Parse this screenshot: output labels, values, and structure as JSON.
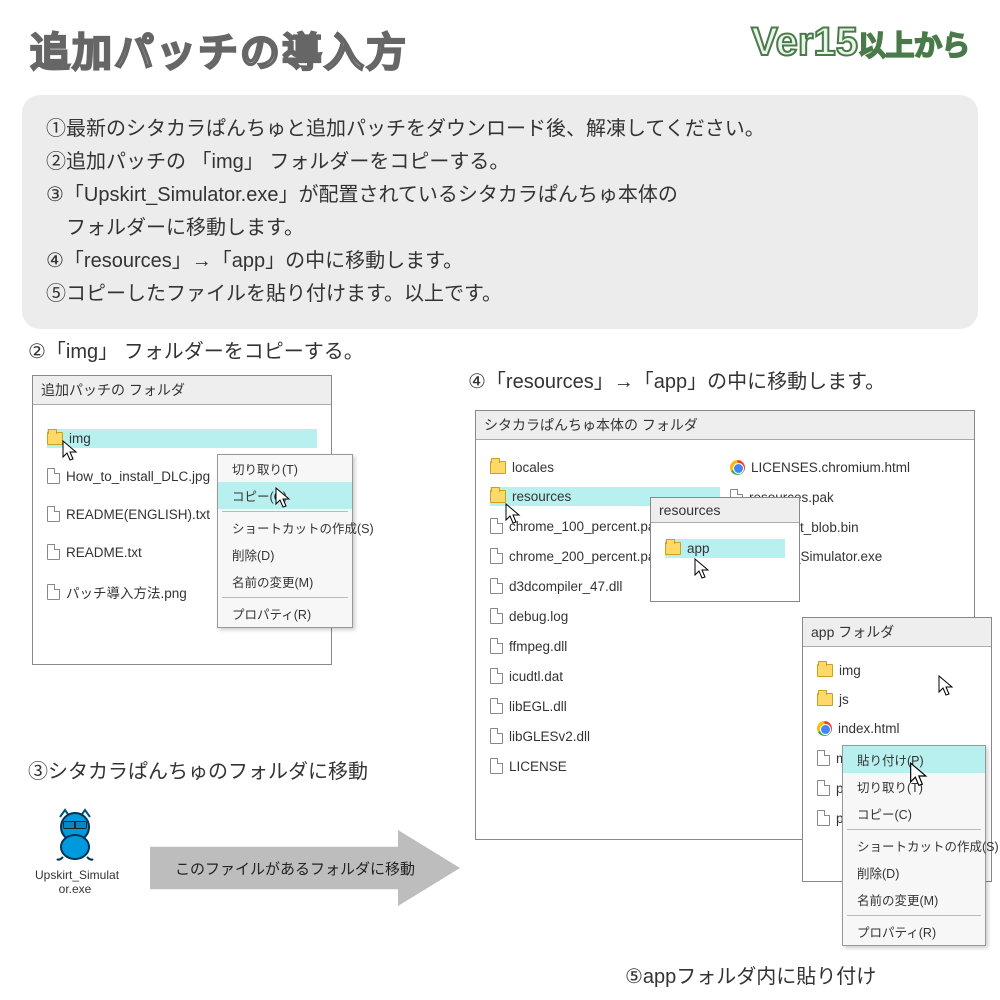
{
  "title": "追加パッチの導入方",
  "version": "Ver15",
  "version_suffix": "以上から",
  "instructions": [
    "①最新のシタカラぱんちゅと追加パッチをダウンロード後、解凍してください。",
    "②追加パッチの 「img」 フォルダーをコピーする。",
    "③「Upskirt_Simulator.exe」が配置されているシタカラぱんちゅ本体の",
    "　フォルダーに移動します。",
    "④「resources」→「app」の中に移動します。",
    "⑤コピーしたファイルを貼り付けます。以上です。"
  ],
  "step2_label": "②「img」 フォルダーをコピーする。",
  "step3_label": "③シタカラぱんちゅのフォルダに移動",
  "step4_label": "④「resources」→「app」の中に移動します。",
  "step5_label": "⑤appフォルダ内に貼り付け",
  "win1": {
    "title": "追加パッチの フォルダ",
    "items": [
      {
        "name": "img",
        "type": "folder",
        "hi": true
      },
      {
        "name": "How_to_install_DLC.jpg",
        "type": "file"
      },
      {
        "name": "README(ENGLISH).txt",
        "type": "file"
      },
      {
        "name": "README.txt",
        "type": "file"
      },
      {
        "name": "パッチ導入方法.png",
        "type": "file"
      }
    ]
  },
  "ctx1": {
    "items": [
      "切り取り(T)",
      "コピー(C)"
    ],
    "items2": [
      "ショートカットの作成(S)",
      "削除(D)",
      "名前の変更(M)"
    ],
    "items3": [
      "プロパティ(R)"
    ],
    "hi": "コピー(C)"
  },
  "win2": {
    "title": "シタカラぱんちゅ本体の フォルダ",
    "left": [
      {
        "name": "locales",
        "type": "folder"
      },
      {
        "name": "resources",
        "type": "folder",
        "hi": true
      },
      {
        "name": "chrome_100_percent.pak",
        "type": "file"
      },
      {
        "name": "chrome_200_percent.pak",
        "type": "file"
      },
      {
        "name": "d3dcompiler_47.dll",
        "type": "file"
      },
      {
        "name": "debug.log",
        "type": "file"
      },
      {
        "name": "ffmpeg.dll",
        "type": "file"
      },
      {
        "name": "icudtl.dat",
        "type": "file"
      },
      {
        "name": "libEGL.dll",
        "type": "file"
      },
      {
        "name": "libGLESv2.dll",
        "type": "file"
      },
      {
        "name": "LICENSE",
        "type": "file"
      }
    ],
    "right": [
      {
        "name": "LICENSES.chromium.html",
        "type": "chrome"
      },
      {
        "name": "resources.pak",
        "type": "file"
      },
      {
        "name": "snapshot_blob.bin",
        "type": "file"
      },
      {
        "name": "Upskirt_Simulator.exe",
        "type": "exe"
      }
    ]
  },
  "win3": {
    "title": "resources",
    "items": [
      {
        "name": "app",
        "type": "folder",
        "hi": true
      }
    ]
  },
  "win4": {
    "title": "app フォルダ",
    "items": [
      {
        "name": "img",
        "type": "folder"
      },
      {
        "name": "js",
        "type": "folder"
      },
      {
        "name": "index.html",
        "type": "chrome"
      },
      {
        "name": "main.js",
        "type": "file"
      },
      {
        "name": "package.json",
        "type": "file"
      },
      {
        "name": "preload.js",
        "type": "file"
      }
    ]
  },
  "ctx2": {
    "items": [
      "貼り付け(P)",
      "切り取り(T)",
      "コピー(C)"
    ],
    "items2": [
      "ショートカットの作成(S)",
      "削除(D)",
      "名前の変更(M)"
    ],
    "items3": [
      "プロパティ(R)"
    ],
    "hi": "貼り付け(P)"
  },
  "arrow_text": "このファイルがあるフォルダに移動",
  "exe_label": "Upskirt_Simulat\nor.exe"
}
